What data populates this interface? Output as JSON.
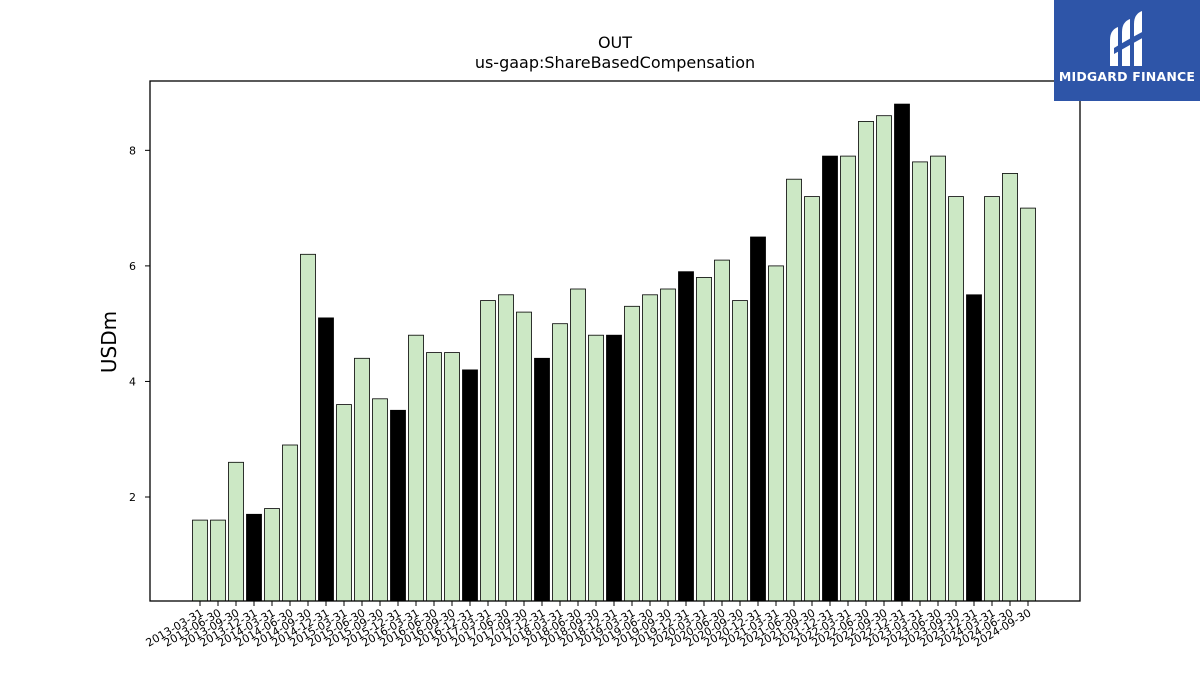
{
  "chart_data": {
    "type": "bar",
    "title": "OUT",
    "subtitle": "us-gaap:ShareBasedCompensation",
    "xlabel": "",
    "ylabel": "USDm",
    "ylim": [
      0.2,
      9.2
    ],
    "yticks": [
      2,
      4,
      6,
      8
    ],
    "grid": false,
    "legend": "none",
    "colors": {
      "quarter": "#cce8c5",
      "year_end": "#000000",
      "edge": "#000000"
    },
    "categories": [
      "2013-03-31",
      "2013-06-30",
      "2013-09-30",
      "2013-12-31",
      "2014-03-31",
      "2014-06-30",
      "2014-09-30",
      "2014-12-31",
      "2015-03-31",
      "2015-06-30",
      "2015-09-30",
      "2015-12-31",
      "2016-03-31",
      "2016-06-30",
      "2016-09-30",
      "2016-12-31",
      "2017-03-31",
      "2017-06-30",
      "2017-09-30",
      "2017-12-31",
      "2018-03-31",
      "2018-06-30",
      "2018-09-30",
      "2018-12-31",
      "2019-03-31",
      "2019-06-30",
      "2019-09-30",
      "2019-12-31",
      "2020-03-31",
      "2020-06-30",
      "2020-09-30",
      "2020-12-31",
      "2021-03-31",
      "2021-06-30",
      "2021-09-30",
      "2021-12-31",
      "2022-03-31",
      "2022-06-30",
      "2022-09-30",
      "2022-12-31",
      "2023-03-31",
      "2023-06-30",
      "2023-09-30",
      "2023-12-31",
      "2024-03-31",
      "2024-06-30",
      "2024-09-30"
    ],
    "values": [
      1.6,
      1.6,
      2.6,
      1.7,
      1.8,
      2.9,
      6.2,
      5.1,
      3.6,
      4.4,
      3.7,
      3.5,
      4.8,
      4.5,
      4.5,
      4.2,
      5.4,
      5.5,
      5.2,
      4.4,
      5.0,
      5.6,
      4.8,
      4.8,
      5.3,
      5.5,
      5.6,
      5.9,
      5.8,
      6.1,
      5.4,
      6.5,
      6.0,
      7.5,
      7.2,
      7.9,
      7.9,
      8.5,
      8.6,
      8.8,
      7.8,
      7.9,
      7.2,
      5.5,
      7.2,
      7.6,
      7.0
    ],
    "highlight": [
      false,
      false,
      false,
      true,
      false,
      false,
      false,
      true,
      false,
      false,
      false,
      true,
      false,
      false,
      false,
      true,
      false,
      false,
      false,
      true,
      false,
      false,
      false,
      true,
      false,
      false,
      false,
      true,
      false,
      false,
      false,
      true,
      false,
      false,
      false,
      true,
      false,
      false,
      false,
      true,
      false,
      false,
      false,
      true,
      false,
      false,
      false
    ]
  },
  "logo": {
    "text": "MIDGARD FINANCE",
    "icon": "midgard-logo-icon",
    "bg": "#2e55a8"
  }
}
